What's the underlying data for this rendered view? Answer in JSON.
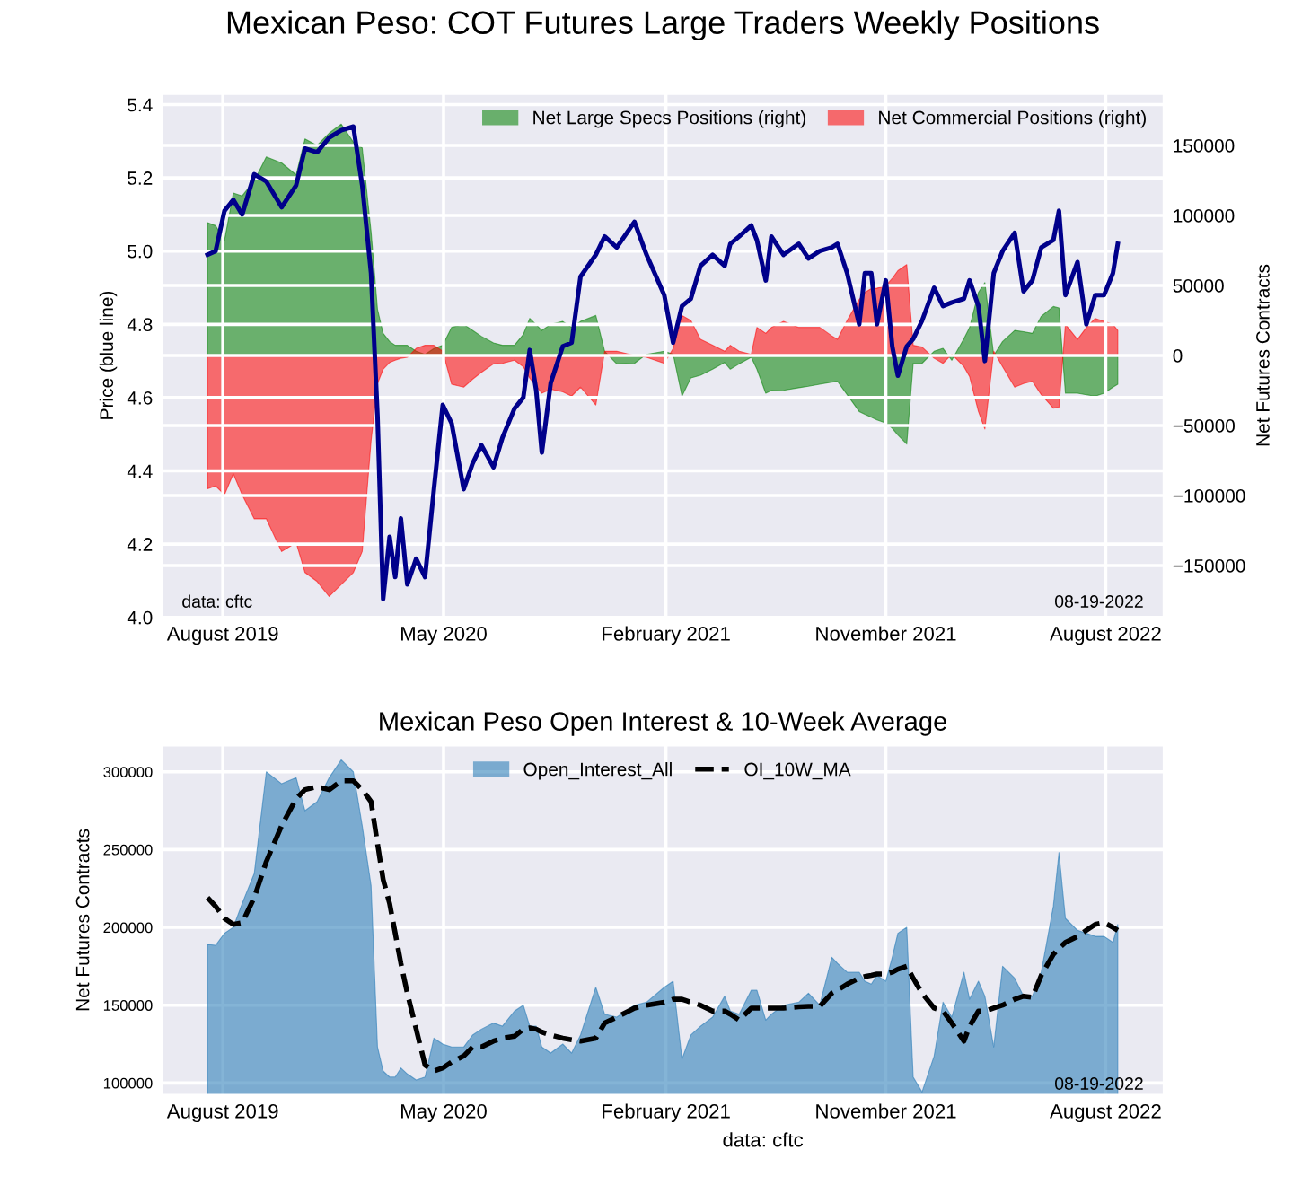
{
  "chart_data": [
    {
      "type": "area",
      "title": "Mexican Peso: COT Futures Large Traders Weekly Positions",
      "ylabel": "Price (blue line)",
      "y2label": "Net Futures Contracts",
      "x": [
        "2019-07-13",
        "2019-07-23",
        "2019-08-03",
        "2019-08-14",
        "2019-08-25",
        "2019-09-09",
        "2019-09-24",
        "2019-10-13",
        "2019-10-31",
        "2019-11-11",
        "2019-11-26",
        "2019-12-11",
        "2019-12-26",
        "2020-01-10",
        "2020-01-21",
        "2020-02-01",
        "2020-02-09",
        "2020-02-16",
        "2020-02-24",
        "2020-03-02",
        "2020-03-09",
        "2020-03-17",
        "2020-03-28",
        "2020-04-08",
        "2020-04-19",
        "2020-04-30",
        "2020-05-11",
        "2020-05-26",
        "2020-06-06",
        "2020-06-17",
        "2020-07-02",
        "2020-07-13",
        "2020-07-28",
        "2020-08-08",
        "2020-08-16",
        "2020-08-24",
        "2020-08-31",
        "2020-09-11",
        "2020-09-26",
        "2020-10-07",
        "2020-10-18",
        "2020-11-06",
        "2020-11-17",
        "2020-12-02",
        "2020-12-24",
        "2021-01-08",
        "2021-01-30",
        "2021-02-10",
        "2021-02-21",
        "2021-03-04",
        "2021-03-16",
        "2021-03-31",
        "2021-04-15",
        "2021-04-22",
        "2021-05-03",
        "2021-05-18",
        "2021-05-25",
        "2021-06-05",
        "2021-06-12",
        "2021-06-27",
        "2021-07-16",
        "2021-07-28",
        "2021-08-11",
        "2021-08-26",
        "2021-09-02",
        "2021-09-14",
        "2021-09-29",
        "2021-10-06",
        "2021-10-14",
        "2021-10-21",
        "2021-11-01",
        "2021-11-09",
        "2021-11-16",
        "2021-11-27",
        "2021-12-05",
        "2021-12-16",
        "2021-12-31",
        "2022-01-11",
        "2022-01-22",
        "2022-02-06",
        "2022-02-13",
        "2022-02-24",
        "2022-03-04",
        "2022-03-15",
        "2022-03-26",
        "2022-04-10",
        "2022-04-21",
        "2022-05-02",
        "2022-05-13",
        "2022-05-28",
        "2022-06-04",
        "2022-06-12",
        "2022-06-27",
        "2022-07-08",
        "2022-07-19",
        "2022-07-30",
        "2022-08-10",
        "2022-08-16"
      ],
      "series": [
        {
          "name": "Net Large Specs Positions (right)",
          "axis": "y2",
          "color": "#008000",
          "values": [
            94800,
            92700,
            82000,
            116000,
            114000,
            124700,
            141800,
            137500,
            129000,
            154600,
            150000,
            158800,
            165200,
            152400,
            148200,
            88400,
            32900,
            15800,
            10000,
            7300,
            7300,
            7300,
            3000,
            850,
            5000,
            7300,
            20100,
            22200,
            18000,
            13700,
            9000,
            7300,
            7300,
            15000,
            26500,
            22000,
            17900,
            22200,
            24300,
            20100,
            24300,
            28600,
            3000,
            -6000,
            -5600,
            850,
            3000,
            1000,
            -29000,
            -16000,
            -14100,
            -9800,
            -5000,
            -9800,
            -6000,
            -1300,
            -9800,
            -26900,
            -25000,
            -24800,
            -23000,
            -22000,
            -20500,
            -19000,
            -18400,
            -28000,
            -40000,
            -42000,
            -44000,
            -46000,
            -48200,
            -52000,
            -56800,
            -63200,
            -5600,
            -5600,
            3000,
            5100,
            -3400,
            12000,
            20000,
            45000,
            52100,
            0,
            10000,
            17900,
            17000,
            15800,
            28000,
            35000,
            34000,
            -26900,
            -26900,
            -28000,
            -29000,
            -26900,
            -22600,
            -20500
          ]
        },
        {
          "name": "Net Commercial Positions (right)",
          "axis": "y2",
          "color": "#ff0000",
          "values": [
            -95200,
            -93100,
            -99500,
            -84500,
            -99500,
            -116600,
            -116600,
            -140000,
            -133600,
            -155000,
            -161400,
            -172100,
            -163500,
            -155000,
            -140000,
            -61000,
            -20000,
            -9800,
            -5000,
            -3400,
            -2000,
            -1300,
            5100,
            7300,
            7300,
            3000,
            -20500,
            -22600,
            -17000,
            -12000,
            -6000,
            -5600,
            -3400,
            -8000,
            -16200,
            -22000,
            -26900,
            -24000,
            -26000,
            -29000,
            -22600,
            -35400,
            3000,
            3000,
            0,
            -1300,
            -5600,
            5000,
            28600,
            25000,
            11500,
            7300,
            3000,
            7300,
            3000,
            850,
            20000,
            15800,
            20000,
            24300,
            20100,
            20100,
            20100,
            14000,
            11500,
            25000,
            40000,
            45000,
            47800,
            48000,
            49900,
            55000,
            60600,
            64900,
            7300,
            6000,
            -2000,
            -5600,
            850,
            -8000,
            -15000,
            -40000,
            -52500,
            3000,
            -8000,
            -22600,
            -20000,
            -18400,
            -28000,
            -37600,
            -37000,
            22200,
            11500,
            20000,
            26500,
            24300,
            22200,
            17900
          ]
        },
        {
          "type": "line",
          "axis": "y",
          "color": "#00008b",
          "values": [
            4.99,
            5.0,
            5.11,
            5.14,
            5.1,
            5.21,
            5.19,
            5.12,
            5.18,
            5.28,
            5.27,
            5.31,
            5.33,
            5.34,
            5.18,
            4.94,
            4.55,
            4.05,
            4.22,
            4.11,
            4.27,
            4.09,
            4.16,
            4.11,
            4.35,
            4.58,
            4.53,
            4.35,
            4.42,
            4.47,
            4.41,
            4.49,
            4.57,
            4.6,
            4.73,
            4.62,
            4.45,
            4.64,
            4.74,
            4.75,
            4.93,
            4.99,
            5.04,
            5.01,
            5.08,
            4.99,
            4.88,
            4.75,
            4.85,
            4.87,
            4.96,
            4.99,
            4.96,
            5.02,
            5.04,
            5.07,
            5.03,
            4.92,
            5.04,
            4.99,
            5.02,
            4.98,
            5.0,
            5.01,
            5.02,
            4.94,
            4.8,
            4.94,
            4.94,
            4.8,
            4.92,
            4.74,
            4.66,
            4.74,
            4.76,
            4.81,
            4.9,
            4.85,
            4.86,
            4.87,
            4.92,
            4.85,
            4.7,
            4.94,
            5.0,
            5.05,
            4.89,
            4.92,
            5.01,
            5.03,
            5.11,
            4.88,
            4.97,
            4.8,
            4.88,
            4.88,
            4.94,
            5.02
          ]
        }
      ],
      "xlim": [
        "2019-05-17",
        "2022-10-12"
      ],
      "xticks": [
        {
          "value": "2019-08-01",
          "label": "August 2019"
        },
        {
          "value": "2020-05-01",
          "label": "May 2020"
        },
        {
          "value": "2021-02-01",
          "label": "February 2021"
        },
        {
          "value": "2021-11-01",
          "label": "November 2021"
        },
        {
          "value": "2022-08-01",
          "label": "August 2022"
        }
      ],
      "ylim": [
        4.0,
        5.43
      ],
      "yticks": [
        {
          "value": 4.0,
          "label": "4.0"
        },
        4.2,
        4.4,
        4.6,
        4.8,
        {
          "value": 5.0,
          "label": "5.0"
        },
        5.2,
        5.4
      ],
      "y2lim": [
        -187000,
        187000
      ],
      "y2ticks": [
        {
          "value": -150000,
          "label": "−150000"
        },
        {
          "value": -100000,
          "label": "−100000"
        },
        {
          "value": -50000,
          "label": "−50000"
        },
        0,
        50000,
        100000,
        150000
      ],
      "grid": true,
      "legend": "top right",
      "annotations": [
        "data: cftc",
        "08-19-2022"
      ]
    },
    {
      "type": "area",
      "title": "Mexican Peso Open Interest & 10-Week Average",
      "ylabel": "Net Futures Contracts",
      "x": [
        "2019-07-13",
        "2019-07-23",
        "2019-08-03",
        "2019-08-14",
        "2019-08-25",
        "2019-09-09",
        "2019-09-24",
        "2019-10-13",
        "2019-10-31",
        "2019-11-11",
        "2019-11-26",
        "2019-12-11",
        "2019-12-26",
        "2020-01-10",
        "2020-01-21",
        "2020-02-01",
        "2020-02-09",
        "2020-02-16",
        "2020-02-24",
        "2020-03-02",
        "2020-03-09",
        "2020-03-17",
        "2020-03-28",
        "2020-04-08",
        "2020-04-19",
        "2020-04-30",
        "2020-05-11",
        "2020-05-26",
        "2020-06-06",
        "2020-06-17",
        "2020-07-02",
        "2020-07-13",
        "2020-07-28",
        "2020-08-08",
        "2020-08-16",
        "2020-08-24",
        "2020-08-31",
        "2020-09-11",
        "2020-09-26",
        "2020-10-07",
        "2020-10-18",
        "2020-11-06",
        "2020-11-17",
        "2020-12-02",
        "2020-12-24",
        "2021-01-08",
        "2021-01-30",
        "2021-02-10",
        "2021-02-21",
        "2021-03-04",
        "2021-03-16",
        "2021-03-31",
        "2021-04-15",
        "2021-04-22",
        "2021-05-03",
        "2021-05-18",
        "2021-05-25",
        "2021-06-05",
        "2021-06-12",
        "2021-06-27",
        "2021-07-16",
        "2021-07-28",
        "2021-08-11",
        "2021-08-26",
        "2021-09-02",
        "2021-09-14",
        "2021-09-29",
        "2021-10-06",
        "2021-10-14",
        "2021-10-21",
        "2021-11-01",
        "2021-11-09",
        "2021-11-16",
        "2021-11-27",
        "2021-12-05",
        "2021-12-16",
        "2021-12-31",
        "2022-01-11",
        "2022-01-22",
        "2022-02-06",
        "2022-02-13",
        "2022-02-24",
        "2022-03-04",
        "2022-03-15",
        "2022-03-26",
        "2022-04-10",
        "2022-04-21",
        "2022-05-02",
        "2022-05-13",
        "2022-05-28",
        "2022-06-04",
        "2022-06-12",
        "2022-06-27",
        "2022-07-08",
        "2022-07-19",
        "2022-07-30",
        "2022-08-10",
        "2022-08-16"
      ],
      "series": [
        {
          "name": "Open_Interest_All",
          "color": "#1f77b4",
          "values": [
            189000,
            188500,
            196200,
            200000,
            215400,
            234600,
            300000,
            292300,
            296200,
            275000,
            280800,
            296200,
            307700,
            300000,
            265400,
            226900,
            123100,
            107700,
            103800,
            103800,
            109600,
            105800,
            101900,
            103800,
            128800,
            125000,
            123100,
            123100,
            130800,
            134600,
            138500,
            136500,
            146200,
            150000,
            136500,
            136500,
            123100,
            119200,
            125000,
            119200,
            130800,
            161500,
            144200,
            142300,
            150000,
            151900,
            161500,
            165400,
            115400,
            130800,
            136500,
            142300,
            155800,
            146200,
            144200,
            159600,
            159600,
            140400,
            144200,
            150000,
            151900,
            157700,
            150000,
            180800,
            176900,
            171200,
            171200,
            165400,
            163500,
            169200,
            165400,
            180800,
            196200,
            200000,
            103800,
            94200,
            117300,
            151900,
            142300,
            171200,
            153800,
            165400,
            155800,
            123100,
            175000,
            167300,
            155800,
            155800,
            171200,
            213500,
            248100,
            205800,
            198100,
            196200,
            194200,
            194200,
            190400,
            201900
          ]
        },
        {
          "name": "OI_10W_MA",
          "type": "line",
          "line_style": "dashed",
          "color": "#000000",
          "values": [
            219200,
            213500,
            205800,
            201900,
            203000,
            219200,
            242300,
            265400,
            282700,
            288500,
            290400,
            288500,
            294200,
            294200,
            288500,
            280800,
            253800,
            230800,
            215400,
            196200,
            176900,
            157700,
            134600,
            111500,
            107700,
            109600,
            113500,
            117300,
            123100,
            123100,
            126900,
            128800,
            130000,
            134600,
            135400,
            134600,
            132700,
            130800,
            128800,
            127700,
            126900,
            128800,
            138500,
            142300,
            148100,
            150000,
            151900,
            153800,
            153800,
            151900,
            150000,
            146200,
            146200,
            144200,
            140400,
            148100,
            148100,
            148100,
            148100,
            148100,
            148900,
            149200,
            149200,
            157700,
            159600,
            163500,
            167300,
            168400,
            169200,
            170000,
            170000,
            171200,
            173100,
            175000,
            167300,
            157700,
            148100,
            146200,
            138500,
            126900,
            136500,
            146200,
            146200,
            148100,
            150000,
            153800,
            155800,
            155000,
            169200,
            182700,
            186500,
            190400,
            194200,
            198100,
            201900,
            203000,
            200000,
            198100
          ]
        }
      ],
      "xlim": [
        "2019-05-17",
        "2022-10-12"
      ],
      "xticks": [
        {
          "value": "2019-08-01",
          "label": "August 2019"
        },
        {
          "value": "2020-05-01",
          "label": "May 2020"
        },
        {
          "value": "2021-02-01",
          "label": "February 2021"
        },
        {
          "value": "2021-11-01",
          "label": "November 2021"
        },
        {
          "value": "2022-08-01",
          "label": "August 2022"
        }
      ],
      "ylim": [
        92300,
        317000
      ],
      "yticks": [
        100000,
        150000,
        200000,
        250000,
        300000
      ],
      "grid": true,
      "legend": "top",
      "annotations": [
        "data: cftc",
        "08-19-2022"
      ]
    }
  ]
}
